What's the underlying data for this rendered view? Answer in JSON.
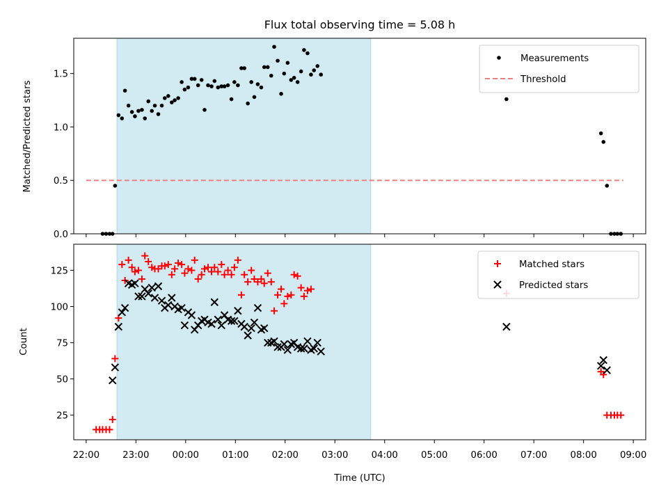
{
  "chart_data": {
    "type": "scatter",
    "title": "Flux total observing time = 5.08 h",
    "xlabel": "Time (UTC)",
    "x_ticks": [
      "22:00",
      "23:00",
      "00:00",
      "01:00",
      "02:00",
      "03:00",
      "04:00",
      "05:00",
      "06:00",
      "07:00",
      "08:00",
      "09:00"
    ],
    "x_range_hours": [
      -0.25,
      11.25
    ],
    "highlight_span_hours": [
      0.62,
      5.72
    ],
    "colors": {
      "measurements": "#000000",
      "threshold": "#f08080",
      "matched": "#ff0000",
      "predicted": "#000000",
      "span": "#add8e6"
    },
    "panels": [
      {
        "ylabel": "Matched/Predicted stars",
        "ylim": [
          0,
          1.83
        ],
        "yticks": [
          "0.0",
          "0.5",
          "1.0",
          "1.5"
        ],
        "ytick_values": [
          0,
          0.5,
          1.0,
          1.5
        ],
        "legend_position": "upper right",
        "series": [
          {
            "name": "Measurements",
            "marker": "dot",
            "points": [
              [
                0.33,
                0
              ],
              [
                0.4,
                0
              ],
              [
                0.47,
                0
              ],
              [
                0.53,
                0
              ],
              [
                0.58,
                0.45
              ],
              [
                0.65,
                1.11
              ],
              [
                0.72,
                1.08
              ],
              [
                0.78,
                1.34
              ],
              [
                0.85,
                1.2
              ],
              [
                0.92,
                1.14
              ],
              [
                0.98,
                1.1
              ],
              [
                1.05,
                1.15
              ],
              [
                1.12,
                1.16
              ],
              [
                1.18,
                1.08
              ],
              [
                1.25,
                1.24
              ],
              [
                1.32,
                1.15
              ],
              [
                1.38,
                1.2
              ],
              [
                1.45,
                1.12
              ],
              [
                1.52,
                1.2
              ],
              [
                1.58,
                1.27
              ],
              [
                1.65,
                1.29
              ],
              [
                1.72,
                1.23
              ],
              [
                1.78,
                1.25
              ],
              [
                1.85,
                1.27
              ],
              [
                1.92,
                1.42
              ],
              [
                1.98,
                1.35
              ],
              [
                2.05,
                1.37
              ],
              [
                2.12,
                1.45
              ],
              [
                2.18,
                1.45
              ],
              [
                2.25,
                1.39
              ],
              [
                2.32,
                1.44
              ],
              [
                2.38,
                1.16
              ],
              [
                2.45,
                1.39
              ],
              [
                2.52,
                1.38
              ],
              [
                2.58,
                1.43
              ],
              [
                2.65,
                1.37
              ],
              [
                2.72,
                1.38
              ],
              [
                2.78,
                1.38
              ],
              [
                2.85,
                1.39
              ],
              [
                2.92,
                1.26
              ],
              [
                2.98,
                1.42
              ],
              [
                3.05,
                1.39
              ],
              [
                3.12,
                1.55
              ],
              [
                3.18,
                1.55
              ],
              [
                3.25,
                1.22
              ],
              [
                3.32,
                1.42
              ],
              [
                3.38,
                1.28
              ],
              [
                3.45,
                1.4
              ],
              [
                3.52,
                1.37
              ],
              [
                3.58,
                1.56
              ],
              [
                3.65,
                1.56
              ],
              [
                3.72,
                1.48
              ],
              [
                3.78,
                1.75
              ],
              [
                3.85,
                1.62
              ],
              [
                3.92,
                1.31
              ],
              [
                3.98,
                1.5
              ],
              [
                4.05,
                1.6
              ],
              [
                4.12,
                1.44
              ],
              [
                4.18,
                1.46
              ],
              [
                4.25,
                1.42
              ],
              [
                4.32,
                1.52
              ],
              [
                4.38,
                1.72
              ],
              [
                4.45,
                1.69
              ],
              [
                4.52,
                1.49
              ],
              [
                4.58,
                1.53
              ],
              [
                4.65,
                1.57
              ],
              [
                4.72,
                1.49
              ],
              [
                8.45,
                1.26
              ],
              [
                10.35,
                0.94
              ],
              [
                10.4,
                0.86
              ],
              [
                10.47,
                0.45
              ],
              [
                10.55,
                0
              ],
              [
                10.62,
                0
              ],
              [
                10.68,
                0
              ],
              [
                10.75,
                0
              ]
            ]
          },
          {
            "name": "Threshold",
            "marker": "dashed-line",
            "points": [
              [
                -0.0,
                0.5
              ],
              [
                10.8,
                0.5
              ]
            ]
          }
        ]
      },
      {
        "ylabel": "Count",
        "ylim": [
          8,
          143
        ],
        "yticks": [
          "25",
          "50",
          "75",
          "100",
          "125"
        ],
        "ytick_values": [
          25,
          50,
          75,
          100,
          125
        ],
        "legend_position": "upper right",
        "series": [
          {
            "name": "Matched stars",
            "marker": "plus",
            "points": [
              [
                0.2,
                15
              ],
              [
                0.27,
                15
              ],
              [
                0.33,
                15
              ],
              [
                0.4,
                15
              ],
              [
                0.47,
                15
              ],
              [
                0.53,
                22
              ],
              [
                0.58,
                64
              ],
              [
                0.65,
                92
              ],
              [
                0.72,
                129
              ],
              [
                0.78,
                118
              ],
              [
                0.85,
                132
              ],
              [
                0.92,
                127
              ],
              [
                0.98,
                124
              ],
              [
                1.05,
                125
              ],
              [
                1.12,
                119
              ],
              [
                1.18,
                135
              ],
              [
                1.25,
                131
              ],
              [
                1.32,
                127
              ],
              [
                1.38,
                126
              ],
              [
                1.45,
                126
              ],
              [
                1.52,
                128
              ],
              [
                1.58,
                128
              ],
              [
                1.65,
                129
              ],
              [
                1.72,
                122
              ],
              [
                1.78,
                126
              ],
              [
                1.85,
                130
              ],
              [
                1.92,
                129
              ],
              [
                1.98,
                123
              ],
              [
                2.05,
                126
              ],
              [
                2.12,
                125
              ],
              [
                2.18,
                132
              ],
              [
                2.25,
                119
              ],
              [
                2.32,
                122
              ],
              [
                2.38,
                126
              ],
              [
                2.45,
                127
              ],
              [
                2.52,
                124
              ],
              [
                2.58,
                127
              ],
              [
                2.65,
                124
              ],
              [
                2.72,
                129
              ],
              [
                2.78,
                122
              ],
              [
                2.85,
                125
              ],
              [
                2.92,
                122
              ],
              [
                2.98,
                127
              ],
              [
                3.05,
                132
              ],
              [
                3.12,
                108
              ],
              [
                3.18,
                122
              ],
              [
                3.25,
                117
              ],
              [
                3.32,
                125
              ],
              [
                3.38,
                119
              ],
              [
                3.45,
                117
              ],
              [
                3.52,
                119
              ],
              [
                3.58,
                116
              ],
              [
                3.65,
                123
              ],
              [
                3.72,
                117
              ],
              [
                3.78,
                97
              ],
              [
                3.85,
                108
              ],
              [
                3.92,
                112
              ],
              [
                3.98,
                102
              ],
              [
                4.05,
                107
              ],
              [
                4.12,
                108
              ],
              [
                4.18,
                122
              ],
              [
                4.25,
                121
              ],
              [
                4.32,
                113
              ],
              [
                4.38,
                107
              ],
              [
                4.45,
                111
              ],
              [
                4.52,
                112
              ],
              [
                8.45,
                109
              ],
              [
                10.35,
                55
              ],
              [
                10.4,
                53
              ],
              [
                10.47,
                25
              ],
              [
                10.55,
                25
              ],
              [
                10.62,
                25
              ],
              [
                10.68,
                25
              ],
              [
                10.75,
                25
              ]
            ]
          },
          {
            "name": "Predicted stars",
            "marker": "x",
            "points": [
              [
                0.53,
                49
              ],
              [
                0.58,
                58
              ],
              [
                0.65,
                86
              ],
              [
                0.72,
                96
              ],
              [
                0.78,
                99
              ],
              [
                0.85,
                116
              ],
              [
                0.92,
                115
              ],
              [
                0.98,
                116
              ],
              [
                1.05,
                107
              ],
              [
                1.12,
                107
              ],
              [
                1.18,
                112
              ],
              [
                1.25,
                109
              ],
              [
                1.32,
                113
              ],
              [
                1.38,
                106
              ],
              [
                1.45,
                114
              ],
              [
                1.52,
                104
              ],
              [
                1.58,
                99
              ],
              [
                1.65,
                101
              ],
              [
                1.72,
                106
              ],
              [
                1.78,
                100
              ],
              [
                1.85,
                98
              ],
              [
                1.92,
                99
              ],
              [
                1.98,
                87
              ],
              [
                2.05,
                96
              ],
              [
                2.12,
                94
              ],
              [
                2.18,
                84
              ],
              [
                2.25,
                87
              ],
              [
                2.32,
                90
              ],
              [
                2.38,
                91
              ],
              [
                2.45,
                89
              ],
              [
                2.52,
                88
              ],
              [
                2.58,
                103
              ],
              [
                2.65,
                91
              ],
              [
                2.72,
                87
              ],
              [
                2.78,
                94
              ],
              [
                2.85,
                91
              ],
              [
                2.92,
                90
              ],
              [
                2.98,
                90
              ],
              [
                3.05,
                97
              ],
              [
                3.12,
                88
              ],
              [
                3.18,
                86
              ],
              [
                3.25,
                80
              ],
              [
                3.32,
                85
              ],
              [
                3.38,
                89
              ],
              [
                3.45,
                99
              ],
              [
                3.52,
                84
              ],
              [
                3.58,
                85
              ],
              [
                3.65,
                75
              ],
              [
                3.72,
                75
              ],
              [
                3.78,
                76
              ],
              [
                3.85,
                72
              ],
              [
                3.92,
                72
              ],
              [
                3.98,
                74
              ],
              [
                4.05,
                70
              ],
              [
                4.12,
                74
              ],
              [
                4.18,
                75
              ],
              [
                4.25,
                72
              ],
              [
                4.32,
                71
              ],
              [
                4.38,
                71
              ],
              [
                4.45,
                76
              ],
              [
                4.52,
                70
              ],
              [
                4.58,
                71
              ],
              [
                4.65,
                75
              ],
              [
                4.72,
                69
              ],
              [
                8.45,
                86
              ],
              [
                10.35,
                59
              ],
              [
                10.4,
                63
              ],
              [
                10.47,
                56
              ]
            ]
          }
        ]
      }
    ]
  }
}
